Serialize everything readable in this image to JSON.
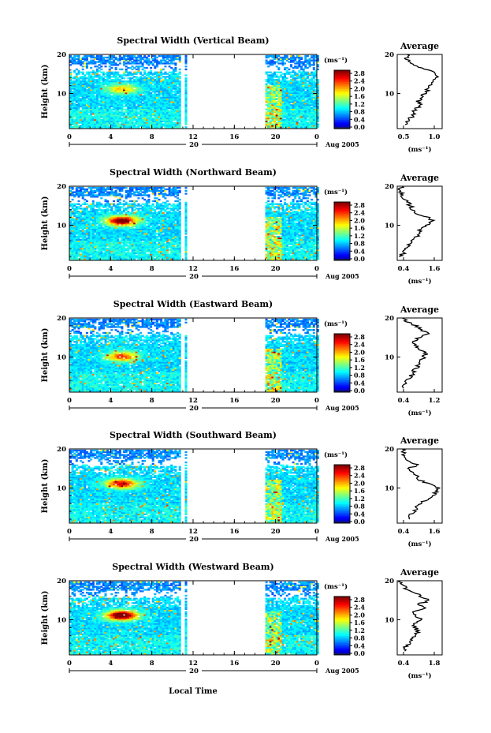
{
  "common": {
    "heatmap_xticks": [
      "0",
      "4",
      "8",
      "12",
      "16",
      "20",
      "0"
    ],
    "heatmap_yticks": [
      "20",
      "10"
    ],
    "ylabel": "Height (km)",
    "day_label": "20",
    "month_label": "Aug 2005",
    "unit_label": "(ms⁻¹)",
    "colorbar_ticks": [
      "2.8",
      "2.4",
      "2.0",
      "1.6",
      "1.2",
      "0.8",
      "0.4",
      "0.0"
    ],
    "xlabel": "Local Time",
    "avg_title": "Average",
    "avg_xlabel": "(ms⁻¹)",
    "avg_yticks": [
      "20",
      "10"
    ]
  },
  "chart_data": [
    {
      "type": "heatmap",
      "title": "Spectral Width (Vertical Beam)",
      "xlabel": "Local Time",
      "ylabel": "Height (km)",
      "xlim": [
        0,
        24
      ],
      "ylim": [
        1,
        20
      ],
      "clim": [
        0.0,
        3.0
      ],
      "data_gap_hours": [
        11.6,
        18.8
      ],
      "average_profile": {
        "title": "Average",
        "xlabel": "(ms⁻¹)",
        "xlim": [
          0.4,
          1.3
        ],
        "xticks": [
          "0.5",
          "1.0"
        ],
        "height": [
          2,
          3,
          4,
          5,
          6,
          7,
          8,
          9,
          10,
          11,
          12,
          13,
          14,
          15,
          16,
          17,
          18,
          19,
          20
        ],
        "width": [
          0.55,
          0.62,
          0.68,
          0.72,
          0.78,
          0.85,
          0.82,
          0.9,
          0.95,
          1.0,
          1.05,
          1.1,
          1.2,
          1.15,
          1.05,
          0.8,
          0.65,
          0.6,
          0.6
        ]
      }
    },
    {
      "type": "heatmap",
      "title": "Spectral Width (Northward Beam)",
      "xlabel": "Local Time",
      "ylabel": "Height (km)",
      "xlim": [
        0,
        24
      ],
      "ylim": [
        1,
        20
      ],
      "clim": [
        0.0,
        3.0
      ],
      "data_gap_hours": [
        11.6,
        18.8
      ],
      "average_profile": {
        "title": "Average",
        "xlabel": "(ms⁻¹)",
        "xlim": [
          0.4,
          1.8
        ],
        "xticks": [
          "0.4",
          "1.6"
        ],
        "height": [
          2,
          3,
          4,
          5,
          6,
          7,
          8,
          9,
          10,
          11,
          12,
          13,
          14,
          15,
          16,
          17,
          18,
          19,
          20
        ],
        "width": [
          0.5,
          0.6,
          0.7,
          0.8,
          0.9,
          1.0,
          1.05,
          1.1,
          1.3,
          1.5,
          1.4,
          1.0,
          0.9,
          0.8,
          0.75,
          0.6,
          0.55,
          0.5,
          0.55
        ]
      }
    },
    {
      "type": "heatmap",
      "title": "Spectral Width (Eastward Beam)",
      "xlabel": "Local Time",
      "ylabel": "Height (km)",
      "xlim": [
        0,
        24
      ],
      "ylim": [
        1,
        20
      ],
      "clim": [
        0.0,
        3.0
      ],
      "data_gap_hours": [
        11.6,
        18.8
      ],
      "average_profile": {
        "title": "Average",
        "xlabel": "(ms⁻¹)",
        "xlim": [
          0.3,
          2.0
        ],
        "xticks": [
          "0.4",
          "1.2"
        ],
        "height": [
          2,
          3,
          4,
          5,
          6,
          7,
          8,
          9,
          10,
          11,
          12,
          13,
          14,
          15,
          16,
          17,
          18,
          19,
          20
        ],
        "width": [
          0.5,
          0.6,
          0.7,
          0.8,
          0.9,
          1.0,
          1.1,
          1.2,
          1.3,
          1.4,
          1.2,
          1.0,
          0.9,
          1.1,
          1.5,
          1.2,
          1.0,
          0.7,
          0.5
        ]
      }
    },
    {
      "type": "heatmap",
      "title": "Spectral Width (Southward Beam)",
      "xlabel": "Local Time",
      "ylabel": "Height (km)",
      "xlim": [
        0,
        24
      ],
      "ylim": [
        1,
        20
      ],
      "clim": [
        0.0,
        3.0
      ],
      "data_gap_hours": [
        11.6,
        18.8
      ],
      "average_profile": {
        "title": "Average",
        "xlabel": "(ms⁻¹)",
        "xlim": [
          0.3,
          1.7
        ],
        "xticks": [
          "0.4",
          "1.6"
        ],
        "height": [
          2,
          3,
          4,
          5,
          6,
          7,
          8,
          9,
          10,
          11,
          12,
          13,
          14,
          15,
          16,
          17,
          18,
          19,
          20
        ],
        "width": [
          0.6,
          0.7,
          0.8,
          0.9,
          1.05,
          1.2,
          1.4,
          1.5,
          1.6,
          1.3,
          1.0,
          0.9,
          0.8,
          0.7,
          0.9,
          0.6,
          0.55,
          0.5,
          0.45
        ]
      }
    },
    {
      "type": "heatmap",
      "title": "Spectral Width (Westward Beam)",
      "xlabel": "Local Time",
      "ylabel": "Height (km)",
      "xlim": [
        0,
        24
      ],
      "ylim": [
        1,
        20
      ],
      "clim": [
        0.0,
        3.0
      ],
      "data_gap_hours": [
        11.6,
        18.8
      ],
      "average_profile": {
        "title": "Average",
        "xlabel": "(ms⁻¹)",
        "xlim": [
          0.4,
          1.9
        ],
        "xticks": [
          "0.4",
          "1.8"
        ],
        "height": [
          2,
          3,
          4,
          5,
          6,
          7,
          8,
          9,
          10,
          11,
          12,
          13,
          14,
          15,
          16,
          17,
          18,
          19,
          20
        ],
        "width": [
          0.6,
          0.7,
          0.8,
          0.9,
          1.0,
          1.1,
          1.0,
          0.95,
          1.2,
          1.0,
          0.9,
          1.3,
          1.1,
          1.5,
          1.2,
          1.0,
          0.7,
          0.55,
          0.5
        ]
      }
    }
  ]
}
